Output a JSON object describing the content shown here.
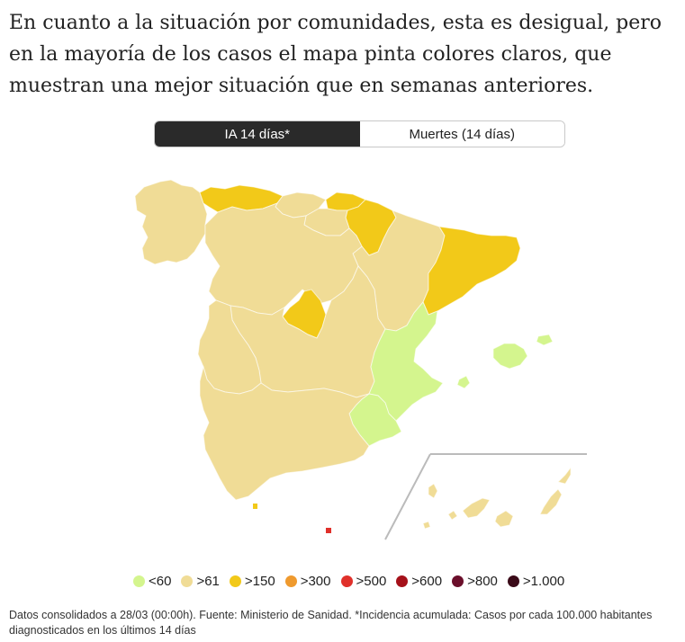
{
  "intro_text": "En cuanto a la situación por comunidades, esta es desigual, pero en la mayoría de los casos el mapa pinta colores claros, que muestran una mejor situación que en semanas anteriores.",
  "tabs": [
    {
      "label": "IA 14 días*",
      "active": true
    },
    {
      "label": "Muertes (14 días)",
      "active": false
    }
  ],
  "legend": [
    {
      "label": "<60",
      "color": "#d4f58e"
    },
    {
      "label": ">61",
      "color": "#f0dc96"
    },
    {
      "label": ">150",
      "color": "#f2c919"
    },
    {
      "label": ">300",
      "color": "#ef9a2e"
    },
    {
      "label": ">500",
      "color": "#e0302a"
    },
    {
      "label": ">600",
      "color": "#a5111a"
    },
    {
      "label": ">800",
      "color": "#6b0f2b"
    },
    {
      "label": ">1.000",
      "color": "#3a0a18"
    }
  ],
  "footnote": "Datos consolidados a 28/03 (00:00h). Fuente: Ministerio de Sanidad. *Incidencia acumulada: Casos por cada 100.000 habitantes diagnosticados en los últimos 14 días",
  "chart_data": {
    "type": "choropleth",
    "metric": "IA 14 días",
    "regions": [
      {
        "name": "Galicia",
        "category": ">61"
      },
      {
        "name": "Asturias",
        "category": ">150"
      },
      {
        "name": "Cantabria",
        "category": ">61"
      },
      {
        "name": "País Vasco",
        "category": ">150"
      },
      {
        "name": "Navarra",
        "category": ">150"
      },
      {
        "name": "La Rioja",
        "category": ">61"
      },
      {
        "name": "Aragón",
        "category": ">61"
      },
      {
        "name": "Cataluña",
        "category": ">150"
      },
      {
        "name": "Castilla y León",
        "category": ">61"
      },
      {
        "name": "Madrid",
        "category": ">150"
      },
      {
        "name": "Castilla-La Mancha",
        "category": ">61"
      },
      {
        "name": "Extremadura",
        "category": ">61"
      },
      {
        "name": "Comunitat Valenciana",
        "category": "<60"
      },
      {
        "name": "Murcia",
        "category": "<60"
      },
      {
        "name": "Andalucía",
        "category": ">61"
      },
      {
        "name": "Illes Balears",
        "category": "<60"
      },
      {
        "name": "Canarias",
        "category": ">61"
      },
      {
        "name": "Ceuta",
        "category": ">150"
      },
      {
        "name": "Melilla",
        "category": ">500"
      }
    ]
  }
}
